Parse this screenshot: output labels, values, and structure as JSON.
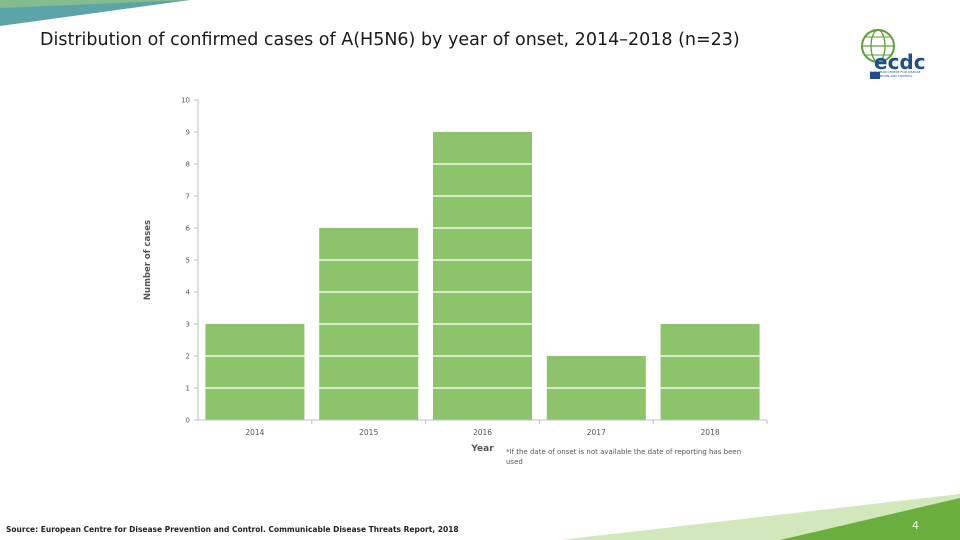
{
  "slide": {
    "title": "Distribution of confirmed cases of A(H5N6) by year of onset, 2014–2018 (n=23)",
    "footnote": "*If the date of onset is not available the date of reporting has been used",
    "source": "Source: European Centre for Disease Prevention and Control. Communicable Disease Threats Report, 2018",
    "page_number": "4",
    "logo_name": "ecdc",
    "logo_subtext": "EUROPEAN CENTRE FOR DISEASE PREVENTION AND CONTROL",
    "colors": {
      "bar": "#8dc46b",
      "accent_green": "#6aaf3d",
      "teal": "#5ba5a8",
      "logo_blue": "#1f4e8c"
    }
  },
  "chart_data": {
    "type": "bar",
    "categories": [
      "2014",
      "2015",
      "2016",
      "2017",
      "2018"
    ],
    "values": [
      3,
      6,
      9,
      2,
      3
    ],
    "xlabel": "Year",
    "ylabel": "Number of cases",
    "ylim": [
      0,
      10
    ],
    "yticks": [
      "0",
      "1",
      "2",
      "3",
      "4",
      "5",
      "6",
      "7",
      "8",
      "9",
      "10"
    ],
    "grid": false,
    "bar_color": "#8dc46b"
  }
}
